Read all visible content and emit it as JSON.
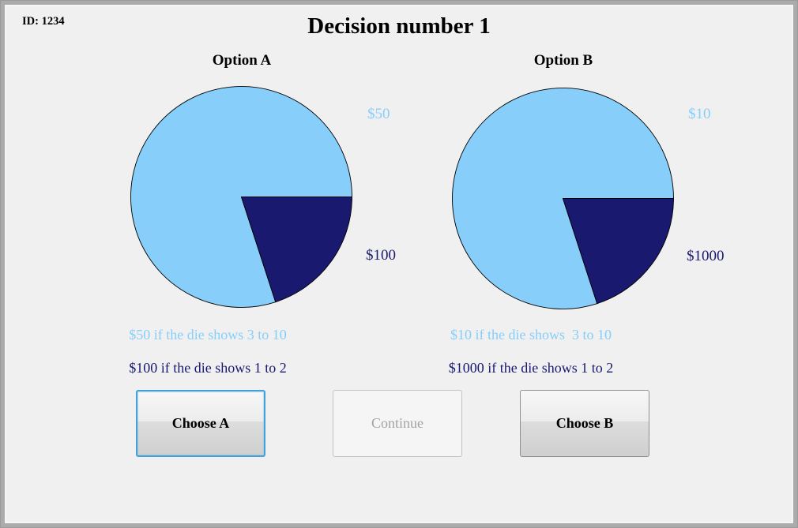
{
  "header": {
    "id_label": "ID: 1234",
    "title": "Decision number 1"
  },
  "options": [
    {
      "title": "Option A",
      "pie_label_high": "$50",
      "pie_label_low": "$100",
      "desc_high": "$50 if the die shows 3 to 10",
      "desc_low": "$100 if the die shows 1 to 2",
      "choose_label": "Choose A",
      "focused": true
    },
    {
      "title": "Option B",
      "pie_label_high": "$10",
      "pie_label_low": "$1000",
      "desc_high": "$10 if the die shows  3 to 10",
      "desc_low": "$1000 if the die shows 1 to 2",
      "choose_label": "Choose B",
      "focused": false
    }
  ],
  "continue_button": {
    "label": "Continue",
    "enabled": false
  },
  "colors": {
    "light_blue": "#87CEFA",
    "dark_navy": "#191970",
    "content_bg": "#F0F0F0",
    "focus_border": "#42A1D8",
    "pie_outline": "#000000"
  },
  "chart_data": [
    {
      "type": "pie",
      "title": "Option A",
      "labels": [
        "$50",
        "$100"
      ],
      "values": [
        80,
        20
      ],
      "unit": "percent",
      "colors": [
        "#87CEFA",
        "#191970"
      ],
      "start_angle": 0,
      "direction": "counterclockwise",
      "annotations": [
        "$50 if the die shows 3 to 10",
        "$100 if the die shows 1 to 2"
      ]
    },
    {
      "type": "pie",
      "title": "Option B",
      "labels": [
        "$10",
        "$1000"
      ],
      "values": [
        80,
        20
      ],
      "unit": "percent",
      "colors": [
        "#87CEFA",
        "#191970"
      ],
      "start_angle": 0,
      "direction": "counterclockwise",
      "annotations": [
        "$10 if the die shows  3 to 10",
        "$1000 if the die shows 1 to 2"
      ]
    }
  ]
}
